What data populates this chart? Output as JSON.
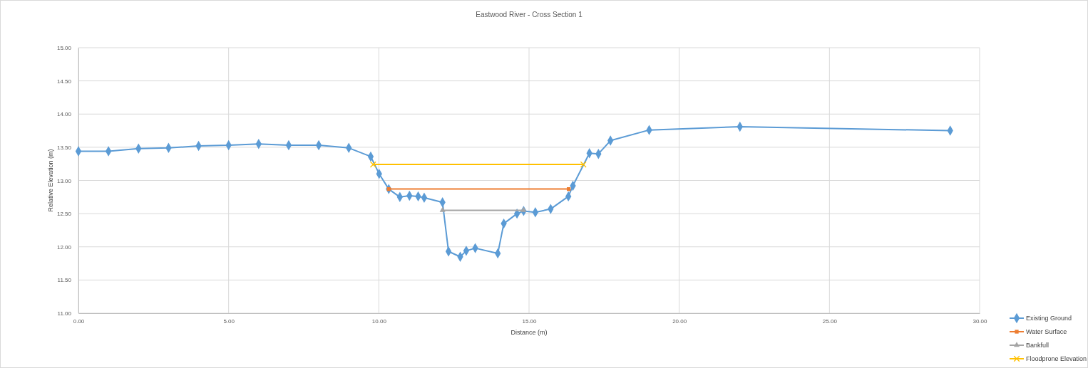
{
  "chart_data": {
    "type": "line",
    "title": "Eastwood River - Cross Section 1",
    "xlabel": "Distance (m)",
    "ylabel": "Relative Elevation (m)",
    "xlim": [
      0,
      30
    ],
    "xticks": [
      {
        "value": 0,
        "label": "0.00"
      },
      {
        "value": 5,
        "label": "5.00"
      },
      {
        "value": 10,
        "label": "10.00"
      },
      {
        "value": 15,
        "label": "15.00"
      },
      {
        "value": 20,
        "label": "20.00"
      },
      {
        "value": 25,
        "label": "25.00"
      },
      {
        "value": 30,
        "label": "30.00"
      }
    ],
    "ylim": [
      11,
      15
    ],
    "yticks": [
      {
        "value": 11,
        "label": "11.00"
      },
      {
        "value": 11.5,
        "label": "11.50"
      },
      {
        "value": 12,
        "label": "12.00"
      },
      {
        "value": 12.5,
        "label": "12.50"
      },
      {
        "value": 13,
        "label": "13.00"
      },
      {
        "value": 13.5,
        "label": "13.50"
      },
      {
        "value": 14,
        "label": "14.00"
      },
      {
        "value": 14.5,
        "label": "14.50"
      },
      {
        "value": 15,
        "label": "15.00"
      }
    ],
    "grid": true,
    "legend": "bottom right",
    "line_style": "solid",
    "series": [
      {
        "name": "Existing Ground",
        "color": "#5b9bd5",
        "marker": "diamond",
        "x": [
          0,
          1,
          2,
          3,
          4,
          5,
          6,
          7,
          8,
          9,
          9.73,
          10.01,
          10.33,
          10.7,
          11.02,
          11.31,
          11.51,
          12.12,
          12.32,
          12.71,
          12.91,
          13.21,
          13.96,
          14.16,
          14.6,
          14.82,
          15.21,
          15.72,
          16.31,
          16.46,
          17.01,
          17.31,
          17.71,
          19,
          22.02,
          29.02
        ],
        "values": [
          13.44,
          13.44,
          13.48,
          13.49,
          13.52,
          13.53,
          13.55,
          13.53,
          13.53,
          13.49,
          13.36,
          13.1,
          12.87,
          12.75,
          12.77,
          12.76,
          12.74,
          12.67,
          11.93,
          11.85,
          11.94,
          11.98,
          11.9,
          12.35,
          12.5,
          12.54,
          12.52,
          12.57,
          12.76,
          12.92,
          13.41,
          13.4,
          13.6,
          13.76,
          13.81,
          13.75
        ]
      },
      {
        "name": "Water Surface",
        "color": "#ed7d31",
        "marker": "square",
        "x": [
          10.33,
          16.32
        ],
        "values": [
          12.87,
          12.87
        ]
      },
      {
        "name": "Bankfull",
        "color": "#a5a5a5",
        "marker": "triangle",
        "x": [
          12.12,
          14.82
        ],
        "values": [
          12.55,
          12.55
        ]
      },
      {
        "name": "Floodprone Elevation",
        "color": "#ffc000",
        "marker": "cross",
        "x": [
          9.81,
          16.81
        ],
        "values": [
          13.24,
          13.24
        ]
      }
    ]
  }
}
